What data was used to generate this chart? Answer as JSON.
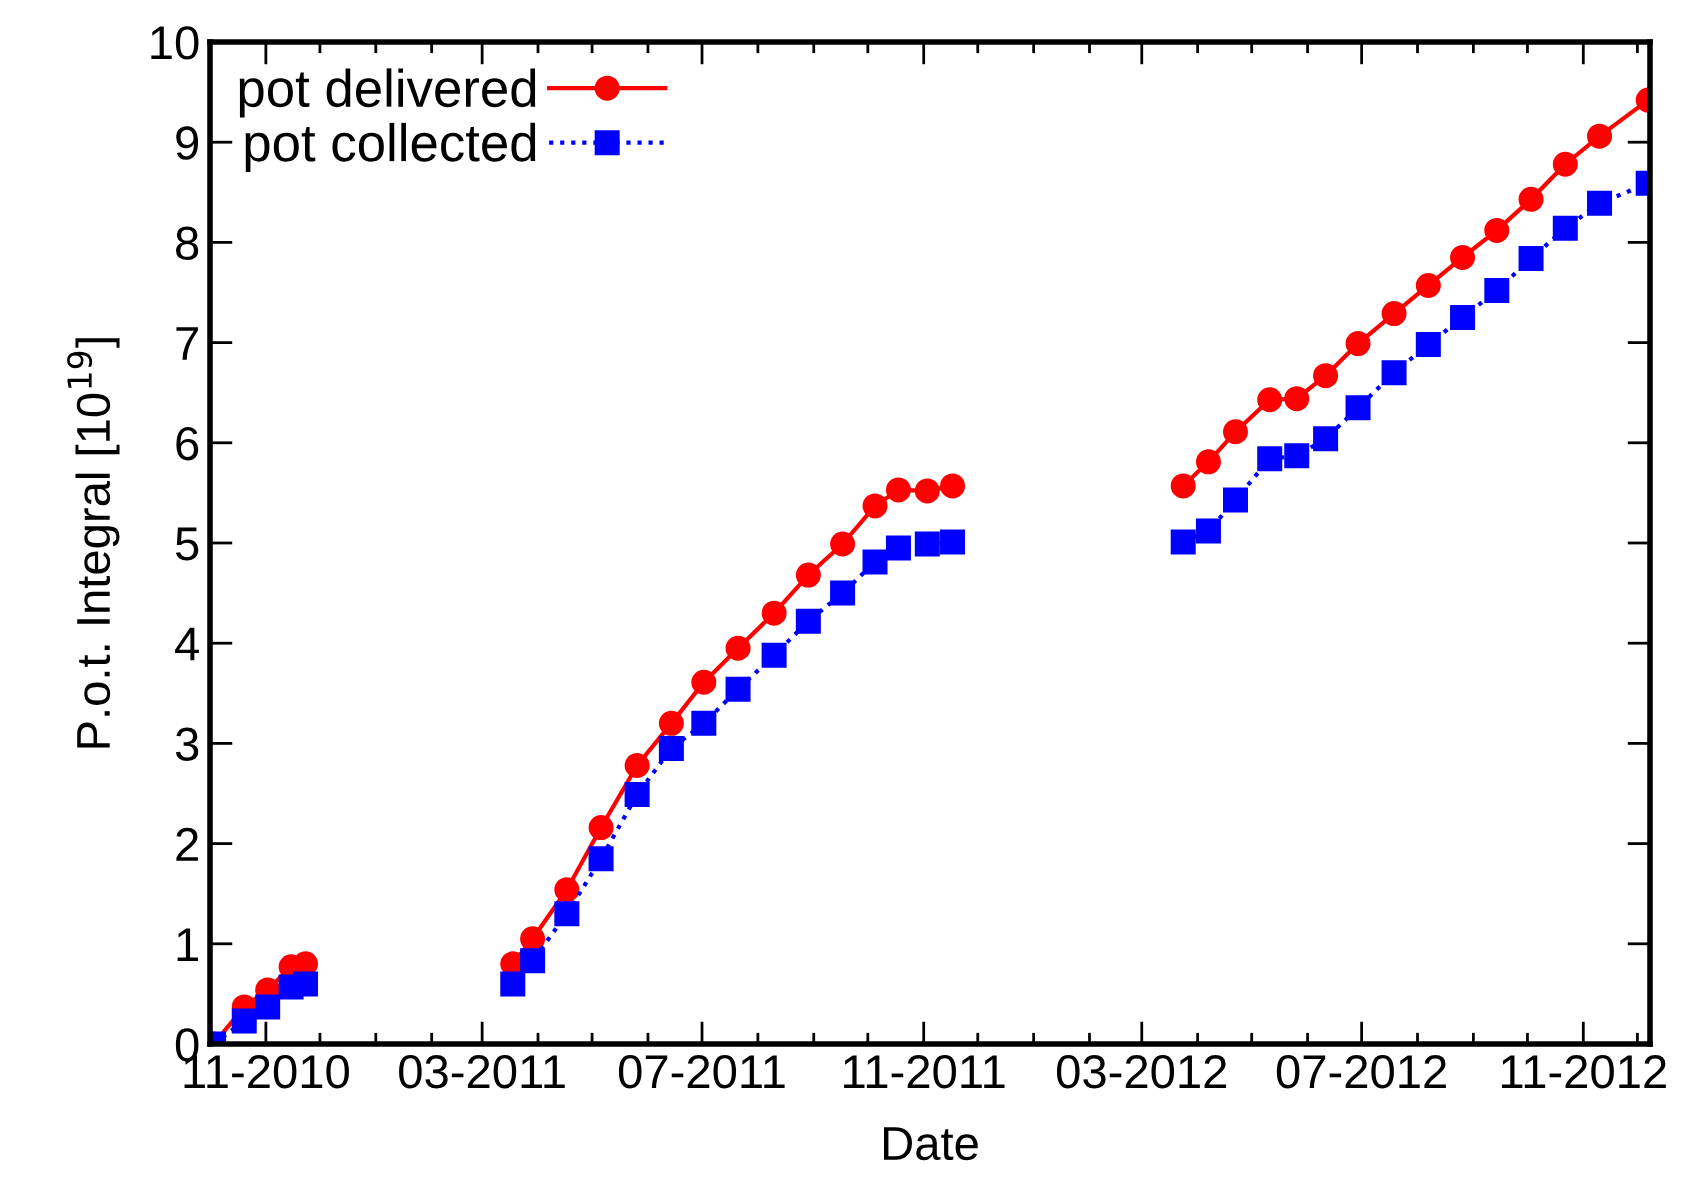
{
  "chart_data": {
    "type": "line",
    "xlabel": "Date",
    "ylabel": "P.o.t. Integral [10$^{19}$]",
    "x": [
      "2010-10-03",
      "2010-10-20",
      "2010-11-02",
      "2010-11-15",
      "2010-11-23",
      "2011-01-15",
      "2011-03-18",
      "2011-03-29",
      "2011-04-17",
      "2011-05-06",
      "2011-05-26",
      "2011-06-14",
      "2011-07-02",
      "2011-07-21",
      "2011-08-10",
      "2011-08-29",
      "2011-09-17",
      "2011-10-05",
      "2011-10-18",
      "2011-11-03",
      "2011-11-17",
      "2012-01-15",
      "2012-03-24",
      "2012-04-07",
      "2012-04-22",
      "2012-05-11",
      "2012-05-26",
      "2012-06-11",
      "2012-06-29",
      "2012-07-19",
      "2012-08-07",
      "2012-08-26",
      "2012-09-14",
      "2012-10-03",
      "2012-10-22",
      "2012-11-10",
      "2012-12-07"
    ],
    "series": [
      {
        "name": "pot delivered",
        "color": "#ff0000",
        "marker": "circle",
        "line_style": "solid",
        "values": [
          0,
          0.37,
          0.54,
          0.77,
          0.8,
          null,
          0.8,
          1.05,
          1.54,
          2.16,
          2.78,
          3.2,
          3.61,
          3.95,
          4.3,
          4.68,
          4.99,
          5.37,
          5.53,
          5.52,
          5.57,
          null,
          5.57,
          5.81,
          6.11,
          6.43,
          6.44,
          6.67,
          6.99,
          7.29,
          7.57,
          7.85,
          8.12,
          8.43,
          8.78,
          9.06,
          9.42
        ]
      },
      {
        "name": "pot collected",
        "color": "#0000ff",
        "marker": "square",
        "line_style": "dotted",
        "values": [
          0,
          0.23,
          0.37,
          0.57,
          0.6,
          null,
          0.6,
          0.83,
          1.3,
          1.85,
          2.49,
          2.95,
          3.2,
          3.54,
          3.88,
          4.22,
          4.5,
          4.81,
          4.95,
          4.99,
          5.01,
          null,
          5.01,
          5.12,
          5.43,
          5.84,
          5.87,
          6.04,
          6.35,
          6.7,
          6.98,
          7.25,
          7.52,
          7.84,
          8.14,
          8.39,
          8.59
        ]
      }
    ],
    "xlim": [
      "2010-10-01",
      "2012-12-08"
    ],
    "xticks": [
      {
        "value": "2010-11-01",
        "label": "11-2010"
      },
      {
        "value": "2011-03-01",
        "label": "03-2011"
      },
      {
        "value": "2011-07-01",
        "label": "07-2011"
      },
      {
        "value": "2011-11-01",
        "label": "11-2011"
      },
      {
        "value": "2012-03-01",
        "label": "03-2012"
      },
      {
        "value": "2012-07-01",
        "label": "07-2012"
      },
      {
        "value": "2012-11-01",
        "label": "11-2012"
      }
    ],
    "ylim": [
      0,
      10
    ],
    "yticks": [
      0,
      1,
      2,
      3,
      4,
      5,
      6,
      7,
      8,
      9,
      10
    ],
    "grid": false,
    "legend": "top left"
  }
}
